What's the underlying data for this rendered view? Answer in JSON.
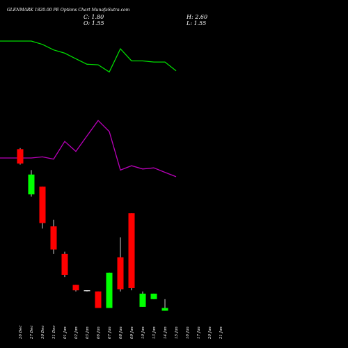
{
  "header": {
    "title": "GLENMARK 1820.00  PE Options  Chart MunafaSutra.com",
    "close_text": "C: 1.80",
    "high_text": "H: 2.60",
    "open_text": "O: 1.55",
    "low_text": "L: 1.55"
  },
  "colors": {
    "background": "#000000",
    "up": "#00ff00",
    "down": "#ff0000",
    "doji": "#ffffff",
    "wick": "#ffffff",
    "green_line": "#00dd00",
    "purple_line": "#bb00bb"
  },
  "chart_data": {
    "type": "candlestick",
    "categories": [
      "26 Dec",
      "27 Dec",
      "30 Dec",
      "31 Dec",
      "01 Jan",
      "02 Jan",
      "03 Jan",
      "06 Jan",
      "07 Jan",
      "08 Jan",
      "09 Jan",
      "10 Jan",
      "13 Jan",
      "14 Jan",
      "15 Jan",
      "16 Jan",
      "17 Jan",
      "20 Jan",
      "21 Jan"
    ],
    "candles": [
      {
        "date": "26 Dec",
        "open": 16.2,
        "high": 16.3,
        "low": 14.8,
        "close": 14.9
      },
      {
        "date": "27 Dec",
        "open": 12.1,
        "high": 14.3,
        "low": 11.9,
        "close": 13.9
      },
      {
        "date": "30 Dec",
        "open": 12.8,
        "high": 12.8,
        "low": 9.0,
        "close": 9.5
      },
      {
        "date": "31 Dec",
        "open": 9.2,
        "high": 9.8,
        "low": 6.7,
        "close": 7.1
      },
      {
        "date": "01 Jan",
        "open": 6.7,
        "high": 6.9,
        "low": 4.6,
        "close": 4.8
      },
      {
        "date": "02 Jan",
        "open": 3.9,
        "high": 3.9,
        "low": 3.3,
        "close": 3.4
      },
      {
        "date": "03 Jan",
        "open": 3.4,
        "high": 3.4,
        "low": 3.3,
        "close": 3.35
      },
      {
        "date": "06 Jan",
        "open": 3.3,
        "high": 3.3,
        "low": 1.8,
        "close": 1.8
      },
      {
        "date": "07 Jan",
        "open": 1.8,
        "high": 5.0,
        "low": 1.8,
        "close": 5.0
      },
      {
        "date": "08 Jan",
        "open": 6.4,
        "high": 8.2,
        "low": 3.3,
        "close": 3.5
      },
      {
        "date": "09 Jan",
        "open": 10.4,
        "high": 10.4,
        "low": 3.4,
        "close": 3.6
      },
      {
        "date": "10 Jan",
        "open": 1.9,
        "high": 3.3,
        "low": 1.9,
        "close": 3.1
      },
      {
        "date": "13 Jan",
        "open": 2.6,
        "high": 3.1,
        "low": 2.6,
        "close": 3.1
      },
      {
        "date": "14 Jan",
        "open": 1.55,
        "high": 2.6,
        "low": 1.55,
        "close": 1.8
      }
    ],
    "green_line": [
      26.0,
      26.0,
      25.7,
      25.2,
      24.9,
      24.4,
      23.9,
      23.85,
      23.2,
      25.3,
      24.2,
      24.2,
      24.1,
      24.1,
      23.3
    ],
    "purple_line": [
      15.4,
      15.4,
      15.5,
      15.3,
      16.9,
      16.0,
      17.4,
      18.8,
      17.8,
      14.3,
      14.7,
      14.4,
      14.5,
      14.1,
      13.7
    ],
    "ylim": [
      1.2,
      27.2
    ],
    "grid": false,
    "ylabel": "",
    "xlabel": ""
  }
}
